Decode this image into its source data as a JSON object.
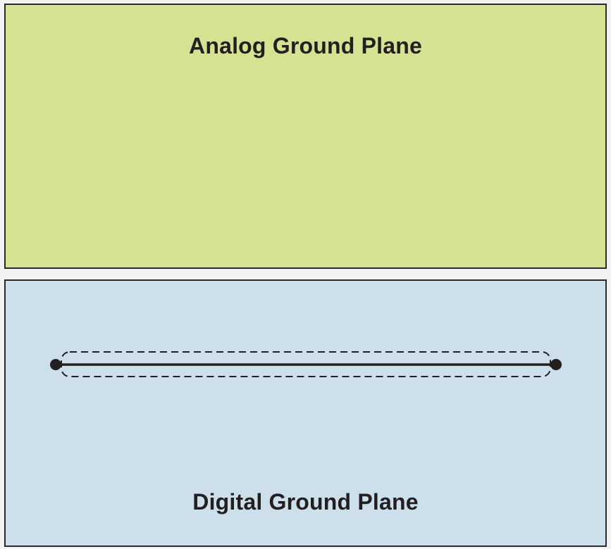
{
  "analog_plane": {
    "label": "Analog Ground Plane",
    "fill_color": "#d5e291"
  },
  "digital_plane": {
    "label": "Digital Ground Plane",
    "fill_color": "#cddfea"
  },
  "trace": {
    "line_color": "#231f20",
    "outline_style": "dashed"
  }
}
